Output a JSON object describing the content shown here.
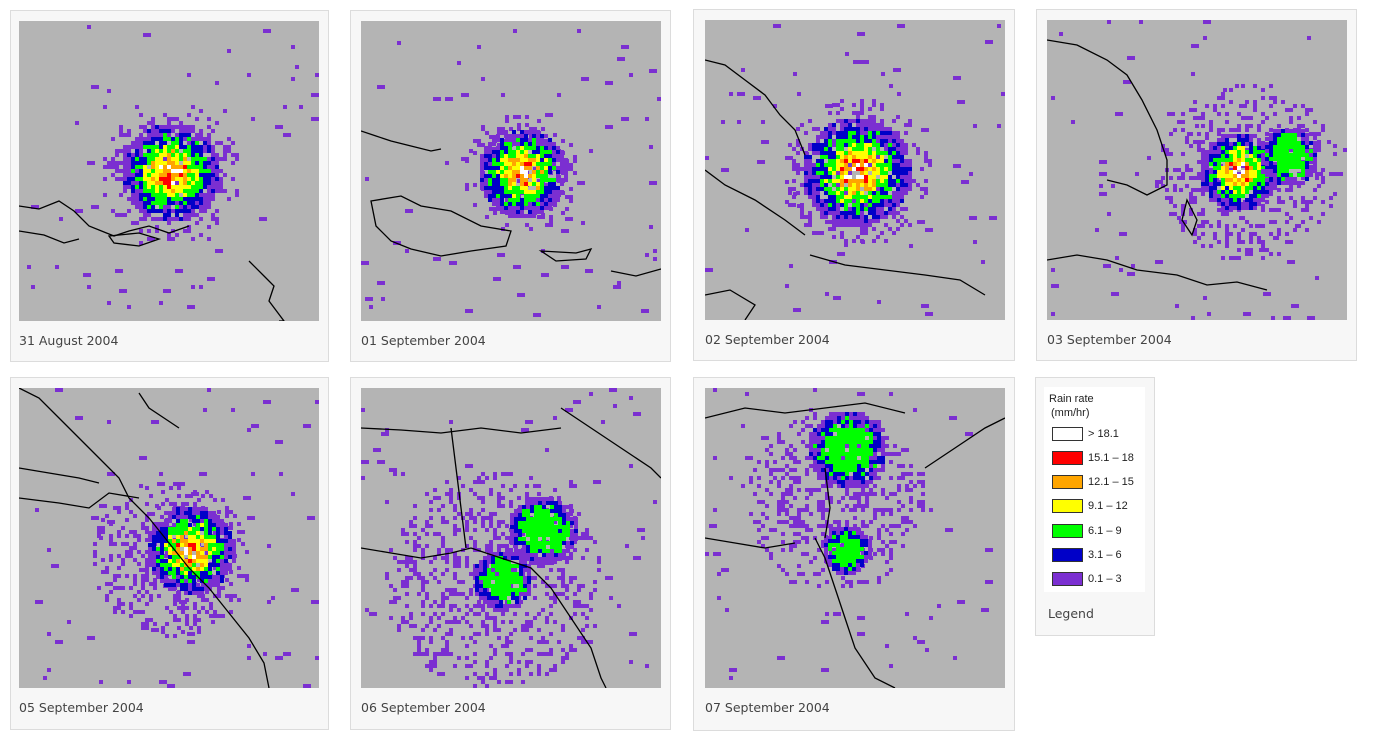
{
  "gallery": {
    "panels": [
      {
        "caption": "31 August 2004"
      },
      {
        "caption": "01 September 2004"
      },
      {
        "caption": "02 September 2004"
      },
      {
        "caption": "03 September 2004"
      },
      {
        "caption": "05 September 2004"
      },
      {
        "caption": "06 September 2004"
      },
      {
        "caption": "07 September 2004"
      }
    ]
  },
  "legend": {
    "title": "Rain rate",
    "unit": "(mm/hr)",
    "caption": "Legend",
    "entries": [
      {
        "label": "> 18.1",
        "color": "#ffffff"
      },
      {
        "label": "15.1 – 18",
        "color": "#ff0000"
      },
      {
        "label": "12.1 – 15",
        "color": "#ffa500"
      },
      {
        "label": "9.1 – 12",
        "color": "#ffff00"
      },
      {
        "label": "6.1 – 9",
        "color": "#00ff00"
      },
      {
        "label": "3.1 – 6",
        "color": "#0000c8"
      },
      {
        "label": "0.1 – 3",
        "color": "#7b2fd1"
      }
    ]
  },
  "colors": {
    "map_background": "#b4b4b4",
    "coastline": "#000000",
    "card_background": "#f7f7f7"
  }
}
